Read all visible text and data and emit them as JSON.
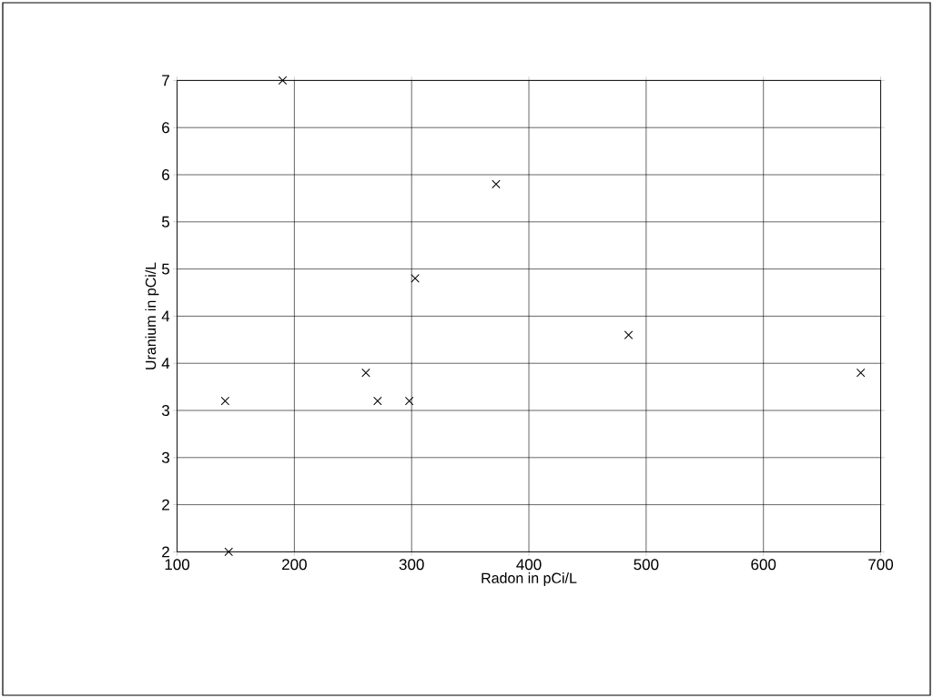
{
  "chart_data": {
    "type": "scatter",
    "xlabel": "Radon in pCi/L",
    "ylabel": "Uranium in pCi/L",
    "x": [
      141,
      144,
      190,
      261,
      271,
      298,
      303,
      372,
      485,
      683
    ],
    "values": [
      3.6,
      2.0,
      7.0,
      3.9,
      3.6,
      3.6,
      4.9,
      5.9,
      4.3,
      3.9
    ],
    "color": "#000000",
    "marker": "cross",
    "grid": true,
    "xlim": [
      100,
      700
    ],
    "xticks": [
      100,
      200,
      300,
      400,
      500,
      600,
      700
    ],
    "ylim": [
      2,
      7
    ],
    "yticks": [
      {
        "value": 2,
        "label": "2"
      },
      {
        "value": 2.5,
        "label": "2"
      },
      {
        "value": 3,
        "label": "3"
      },
      {
        "value": 3.5,
        "label": "3"
      },
      {
        "value": 4,
        "label": "4"
      },
      {
        "value": 4.5,
        "label": "4"
      },
      {
        "value": 5,
        "label": "5"
      },
      {
        "value": 5.5,
        "label": "5"
      },
      {
        "value": 6,
        "label": "6"
      },
      {
        "value": 6.5,
        "label": "6"
      },
      {
        "value": 7,
        "label": "7"
      }
    ]
  }
}
